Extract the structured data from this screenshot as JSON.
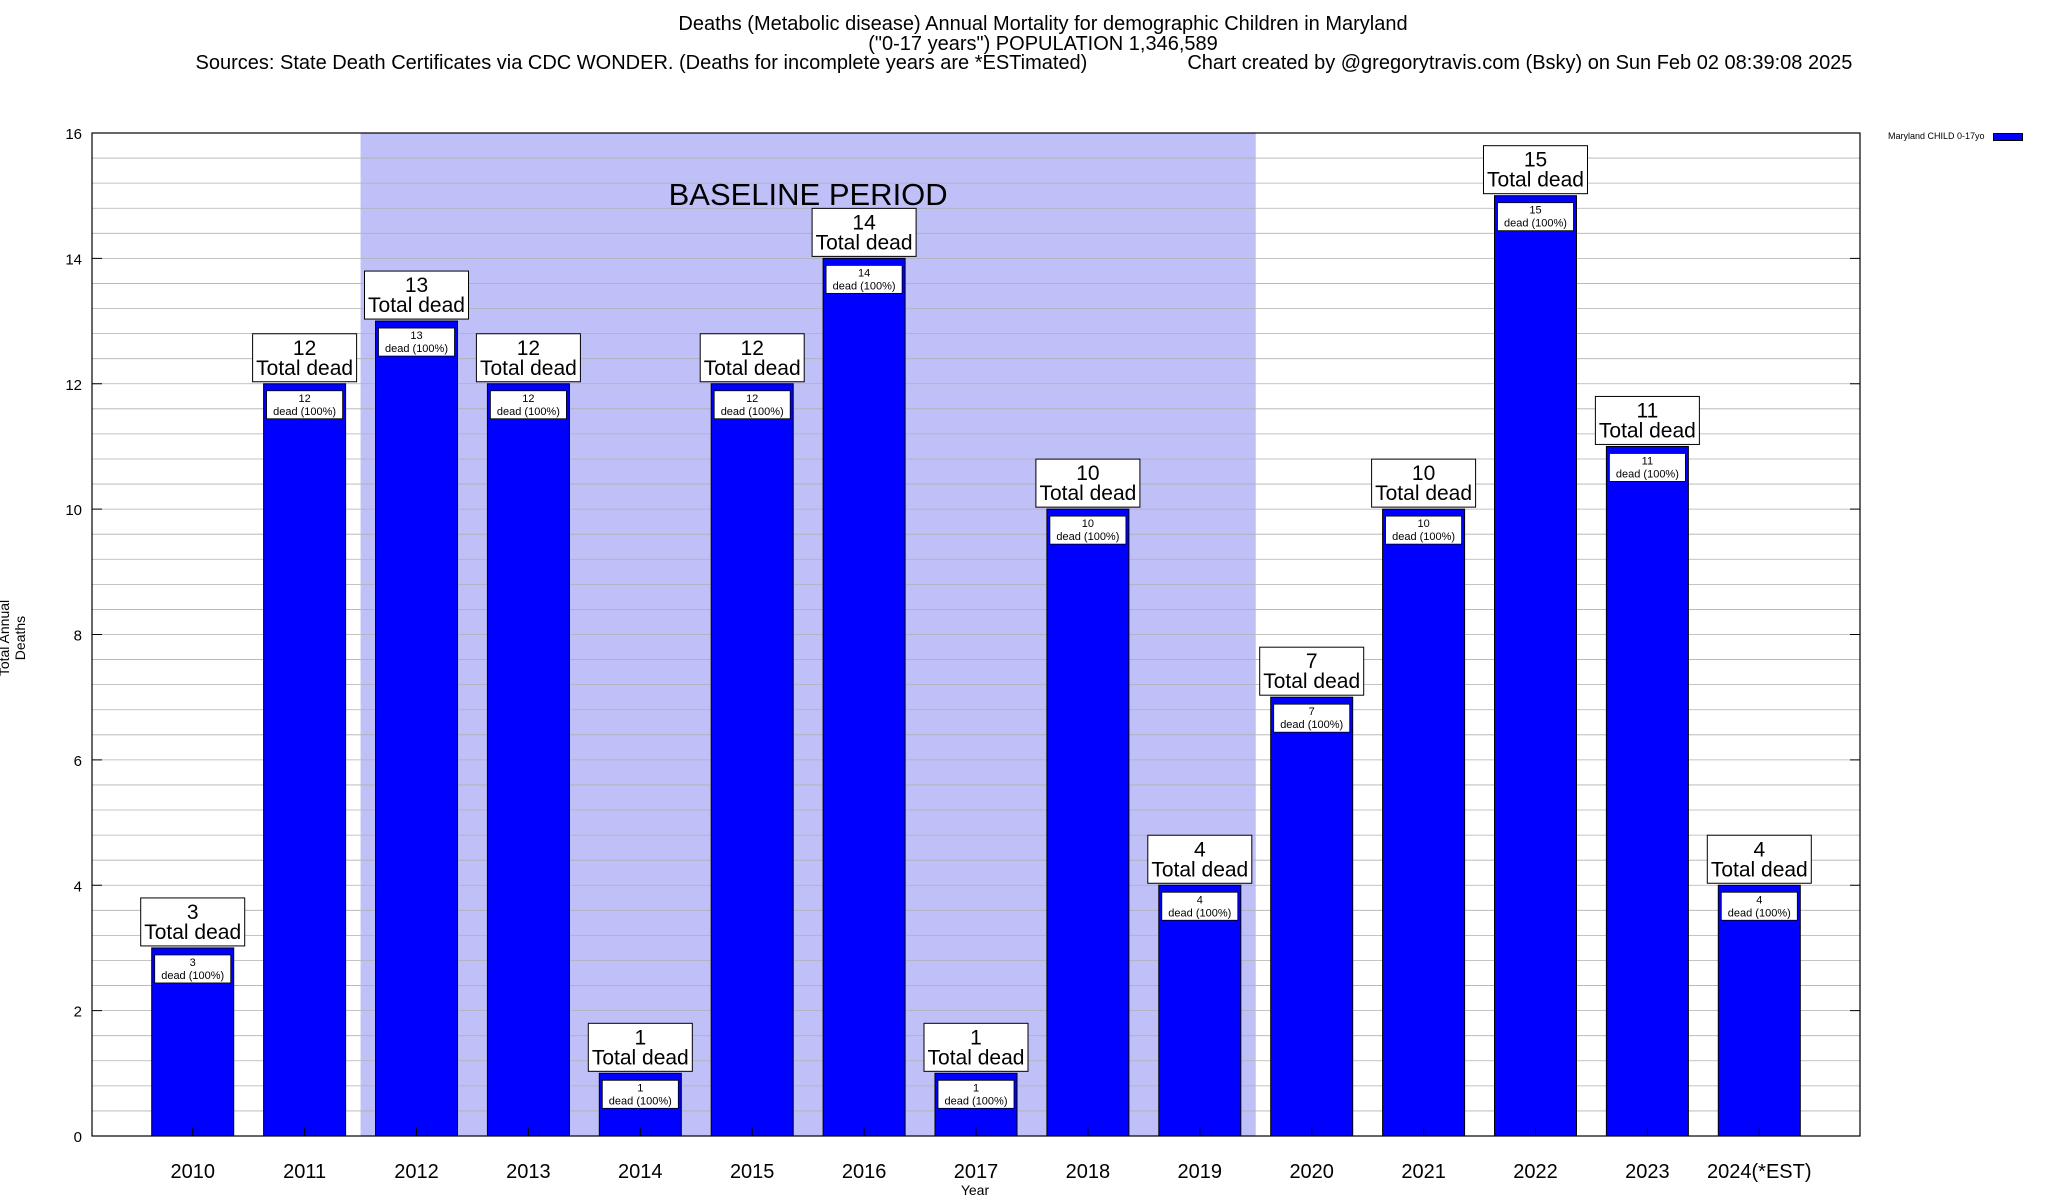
{
  "title": {
    "line1": "Deaths (Metabolic disease) Annual Mortality for demographic Children in Maryland",
    "line2": "(\"0-17 years\") POPULATION 1,346,589",
    "line3_left": "Sources: State Death Certificates via CDC WONDER. (Deaths for incomplete years are *ESTimated)",
    "line3_right": "Chart created by @gregorytravis.com (Bsky) on Sun Feb 02 08:39:08 2025"
  },
  "legend": {
    "label": "Maryland CHILD 0-17yo",
    "color": "#0000ff"
  },
  "colors": {
    "bar": "#0000ff",
    "baseline_band": "#c0c0f8",
    "grid": "#b0b0b0"
  },
  "chart_data": {
    "type": "bar",
    "title": "Deaths (Metabolic disease) Annual Mortality for demographic Children in Maryland",
    "xlabel": "Year",
    "ylabel": "Total Annual Deaths",
    "ylim": [
      0,
      16
    ],
    "yticks": [
      0,
      2,
      4,
      6,
      8,
      10,
      12,
      14,
      16
    ],
    "categories": [
      "2010",
      "2011",
      "2012",
      "2013",
      "2014",
      "2015",
      "2016",
      "2017",
      "2018",
      "2019",
      "2020",
      "2021",
      "2022",
      "2023",
      "2024(*EST)"
    ],
    "series": [
      {
        "name": "Maryland CHILD 0-17yo",
        "values": [
          3,
          12,
          13,
          12,
          1,
          12,
          14,
          1,
          10,
          4,
          7,
          10,
          15,
          11,
          4
        ]
      }
    ],
    "total_label": "Total dead",
    "bar_label_suffix": "dead (100%)",
    "baseline": {
      "label": "BASELINE PERIOD",
      "from": "2012",
      "to": "2019"
    },
    "grid": true,
    "legend_position": "top-right"
  }
}
